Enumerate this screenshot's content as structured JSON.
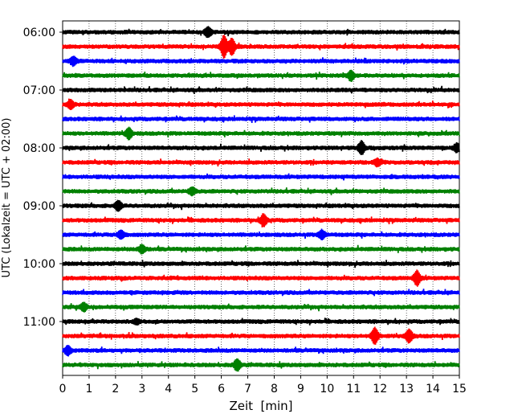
{
  "chart_data": {
    "type": "line",
    "subtype": "seismogram-helicorder",
    "xlabel": "Zeit  [min]",
    "ylabel": "UTC (Lokalzeit = UTC + 02:00)",
    "xlim": [
      0,
      15
    ],
    "x_ticks": [
      0,
      1,
      2,
      3,
      4,
      5,
      6,
      7,
      8,
      9,
      10,
      11,
      12,
      13,
      14,
      15
    ],
    "x_tick_labels": [
      "0",
      "1",
      "2",
      "3",
      "4",
      "5",
      "6",
      "7",
      "8",
      "9",
      "10",
      "11",
      "12",
      "13",
      "14",
      "15"
    ],
    "y_tick_labels": [
      "06:00",
      "07:00",
      "08:00",
      "09:00",
      "10:00",
      "11:00"
    ],
    "grid": "vertical dotted",
    "trace_start_times": [
      "06:00",
      "06:15",
      "06:30",
      "06:45",
      "07:00",
      "07:15",
      "07:30",
      "07:45",
      "08:00",
      "08:15",
      "08:30",
      "08:45",
      "09:00",
      "09:15",
      "09:30",
      "09:45",
      "10:00",
      "10:15",
      "10:30",
      "10:45",
      "11:00",
      "11:15",
      "11:30",
      "11:45"
    ],
    "color_cycle": [
      "#000000",
      "#ff0000",
      "#0000ff",
      "#008000"
    ],
    "events": [
      {
        "trace": "06:00",
        "x": 5.5,
        "amp": 0.6
      },
      {
        "trace": "06:15",
        "x": 6.1,
        "amp": 1.4
      },
      {
        "trace": "06:15",
        "x": 6.4,
        "amp": 1.0
      },
      {
        "trace": "06:30",
        "x": 0.4,
        "amp": 0.5
      },
      {
        "trace": "06:45",
        "x": 10.9,
        "amp": 0.6
      },
      {
        "trace": "07:15",
        "x": 0.3,
        "amp": 0.55
      },
      {
        "trace": "07:45",
        "x": 2.5,
        "amp": 0.65
      },
      {
        "trace": "08:00",
        "x": 11.3,
        "amp": 0.8
      },
      {
        "trace": "08:00",
        "x": 14.9,
        "amp": 0.5
      },
      {
        "trace": "08:15",
        "x": 11.9,
        "amp": 0.4
      },
      {
        "trace": "08:45",
        "x": 4.9,
        "amp": 0.45
      },
      {
        "trace": "09:00",
        "x": 2.1,
        "amp": 0.6
      },
      {
        "trace": "09:15",
        "x": 7.6,
        "amp": 0.75
      },
      {
        "trace": "09:30",
        "x": 2.2,
        "amp": 0.5
      },
      {
        "trace": "09:30",
        "x": 9.8,
        "amp": 0.55
      },
      {
        "trace": "09:45",
        "x": 3.0,
        "amp": 0.5
      },
      {
        "trace": "10:15",
        "x": 13.4,
        "amp": 0.9
      },
      {
        "trace": "10:45",
        "x": 0.8,
        "amp": 0.5
      },
      {
        "trace": "11:00",
        "x": 2.8,
        "amp": 0.3
      },
      {
        "trace": "11:15",
        "x": 11.8,
        "amp": 1.0
      },
      {
        "trace": "11:15",
        "x": 13.1,
        "amp": 0.8
      },
      {
        "trace": "11:30",
        "x": 0.2,
        "amp": 0.55
      },
      {
        "trace": "11:45",
        "x": 6.6,
        "amp": 0.7
      }
    ]
  }
}
